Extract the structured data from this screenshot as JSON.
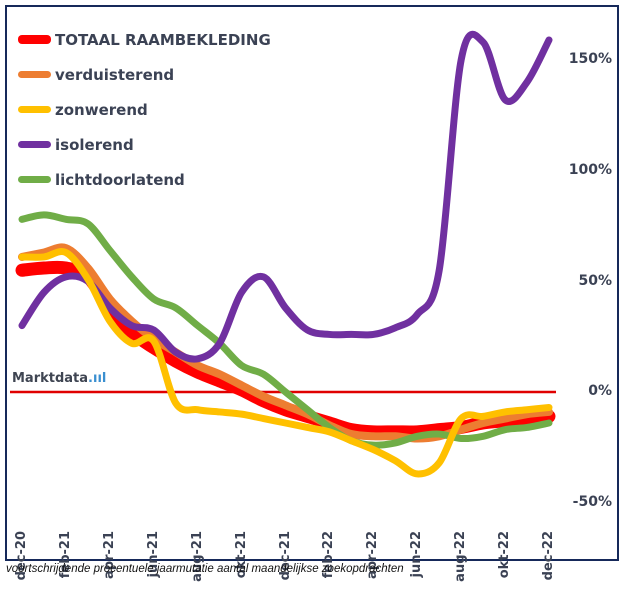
{
  "chart_data": {
    "type": "line",
    "title": "",
    "xlabel": "",
    "ylabel": "",
    "caption": "voortschrijdende procentuele jaarmutatie aantal maandelijkse zoekopdrachten",
    "watermark": "Marktdata",
    "watermark_suffix": ".ııl",
    "x": [
      "dec-20",
      "jan-21",
      "feb-21",
      "mar-21",
      "apr-21",
      "mei-21",
      "jun-21",
      "jul-21",
      "aug-21",
      "sep-21",
      "okt-21",
      "nov-21",
      "dec-21",
      "jan-22",
      "feb-22",
      "mrt-22",
      "apr-22",
      "mei-22",
      "jun-22",
      "jul-22",
      "aug-22",
      "sep-22",
      "okt-22",
      "nov-22",
      "dec-22"
    ],
    "x_tick_labels": [
      "dec-20",
      "feb-21",
      "apr-21",
      "jun-21",
      "aug-21",
      "okt-21",
      "dec-21",
      "feb-22",
      "apr-22",
      "jun-22",
      "aug-22",
      "okt-22",
      "dec-22"
    ],
    "y_ticks": [
      150,
      100,
      50,
      0,
      -50
    ],
    "y_tick_labels": [
      "150%",
      "100%",
      "50%",
      "0%",
      "-50%"
    ],
    "ylim": [
      -55,
      165
    ],
    "y_axis_side": "right",
    "grid": false,
    "zero_line": true,
    "legend_position": "top-left",
    "series": [
      {
        "name": "TOTAAL RAAMBEKLEDING",
        "color": "#ff0000",
        "values": [
          55,
          56,
          56,
          52,
          38,
          27,
          20,
          14,
          9,
          5,
          1,
          -4,
          -8,
          -11,
          -14,
          -17,
          -18,
          -18,
          -18,
          -17,
          -16,
          -14,
          -13,
          -12,
          -11
        ]
      },
      {
        "name": "verduisterend",
        "color": "#ed7d31",
        "values": [
          61,
          63,
          65,
          56,
          42,
          32,
          24,
          18,
          12,
          8,
          3,
          -2,
          -6,
          -10,
          -15,
          -19,
          -20,
          -20,
          -21,
          -20,
          -17,
          -14,
          -12,
          -10,
          -9
        ]
      },
      {
        "name": "zonwerend",
        "color": "#ffc000",
        "values": [
          61,
          61,
          63,
          51,
          32,
          22,
          23,
          -5,
          -8,
          -9,
          -10,
          -12,
          -14,
          -16,
          -18,
          -22,
          -26,
          -31,
          -37,
          -32,
          -12,
          -11,
          -9,
          -8,
          -7
        ]
      },
      {
        "name": "isolerend",
        "color": "#7030a0",
        "values": [
          30,
          45,
          52,
          50,
          38,
          30,
          28,
          18,
          15,
          22,
          45,
          52,
          38,
          28,
          26,
          26,
          26,
          29,
          35,
          55,
          150,
          158,
          132,
          140,
          159
        ]
      },
      {
        "name": "lichtdoorlatend",
        "color": "#70ad47",
        "values": [
          78,
          80,
          78,
          76,
          64,
          52,
          42,
          38,
          30,
          22,
          12,
          8,
          0,
          -8,
          -16,
          -22,
          -24,
          -23,
          -20,
          -19,
          -21,
          -20,
          -17,
          -16,
          -14
        ]
      }
    ]
  }
}
